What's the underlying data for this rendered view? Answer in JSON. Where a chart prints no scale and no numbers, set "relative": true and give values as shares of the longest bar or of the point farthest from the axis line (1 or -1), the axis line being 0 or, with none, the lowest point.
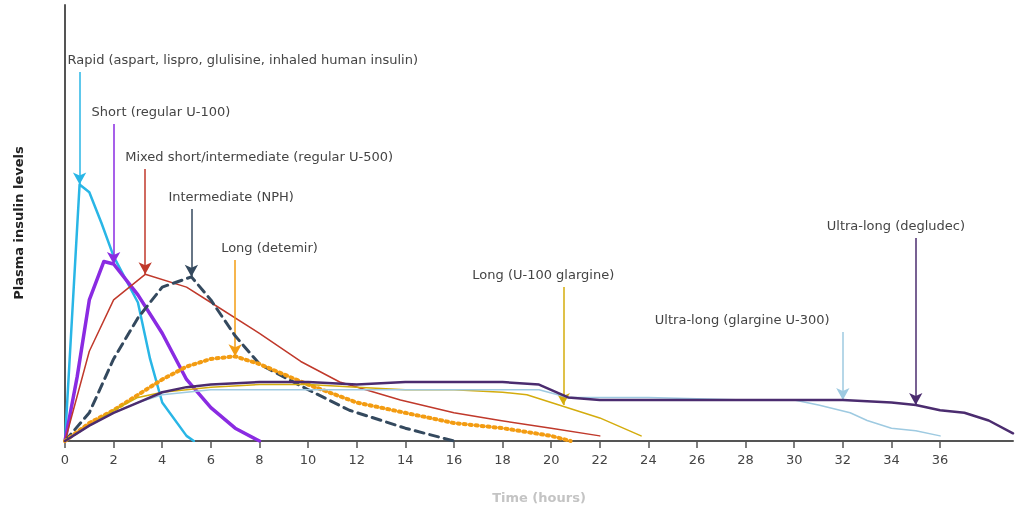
{
  "chart_data": {
    "type": "line",
    "relative": true,
    "xlabel": "Time (hours)",
    "ylabel": "Plasma insulin levels",
    "xlim": [
      0,
      39
    ],
    "xticks": [
      0,
      2,
      4,
      6,
      8,
      10,
      12,
      14,
      16,
      18,
      20,
      22,
      24,
      26,
      28,
      30,
      32,
      34,
      36
    ],
    "marker": "none",
    "grid": false,
    "series": [
      {
        "color": "#29b6e6",
        "line_style": "solid",
        "x": [
          0,
          0.3,
          0.6,
          1,
          1.5,
          2,
          3,
          3.5,
          4,
          5,
          5.3
        ],
        "values": [
          0,
          0.5,
          1.0,
          0.97,
          0.85,
          0.72,
          0.54,
          0.32,
          0.15,
          0.02,
          0
        ]
      },
      {
        "color": "#8a2be2",
        "line_style": "solid",
        "x": [
          0,
          0.5,
          1,
          1.6,
          2,
          3,
          4,
          5,
          6,
          7,
          8
        ],
        "values": [
          0,
          0.25,
          0.55,
          0.7,
          0.69,
          0.57,
          0.42,
          0.24,
          0.13,
          0.05,
          0
        ]
      },
      {
        "color": "#c0392b",
        "line_style": "solid",
        "x": [
          0,
          1,
          2,
          3.3,
          5,
          6,
          8,
          9.7,
          11.3,
          13.8,
          16,
          17.9,
          20,
          22
        ],
        "values": [
          0,
          0.35,
          0.55,
          0.65,
          0.6,
          0.54,
          0.42,
          0.31,
          0.23,
          0.16,
          0.11,
          0.08,
          0.05,
          0.02
        ]
      },
      {
        "color": "#34495e",
        "line_style": "dashed",
        "x": [
          0,
          1,
          2,
          3,
          4,
          5.2,
          6,
          7,
          8,
          9,
          10,
          11.7,
          14,
          16
        ],
        "values": [
          0,
          0.11,
          0.32,
          0.48,
          0.6,
          0.64,
          0.55,
          0.41,
          0.3,
          0.25,
          0.2,
          0.12,
          0.05,
          0
        ]
      },
      {
        "color": "#f39c12",
        "line_style": "dotted",
        "x": [
          0,
          1,
          2,
          3,
          4,
          5,
          6,
          7,
          8,
          9,
          10,
          12,
          14,
          16,
          18,
          20,
          20.8
        ],
        "values": [
          0,
          0.07,
          0.12,
          0.18,
          0.24,
          0.29,
          0.32,
          0.33,
          0.3,
          0.26,
          0.22,
          0.15,
          0.11,
          0.07,
          0.05,
          0.02,
          0
        ]
      },
      {
        "color": "#d4ac0d",
        "line_style": "solid",
        "x": [
          0,
          1,
          2,
          3,
          4,
          6,
          8,
          10,
          12,
          14,
          16,
          18,
          19,
          20,
          21,
          22,
          23.7
        ],
        "values": [
          0,
          0.06,
          0.12,
          0.17,
          0.19,
          0.21,
          0.22,
          0.22,
          0.21,
          0.2,
          0.2,
          0.19,
          0.18,
          0.15,
          0.12,
          0.09,
          0.02
        ]
      },
      {
        "color": "#9ecae1",
        "line_style": "solid",
        "x": [
          0,
          1,
          2,
          3,
          4,
          6,
          8,
          10,
          12,
          14,
          16,
          18,
          19.5,
          20.7,
          24,
          28,
          30,
          31,
          32.3,
          33,
          34,
          35,
          36
        ],
        "values": [
          0,
          0.06,
          0.11,
          0.15,
          0.18,
          0.2,
          0.2,
          0.2,
          0.2,
          0.2,
          0.2,
          0.2,
          0.2,
          0.17,
          0.17,
          0.16,
          0.16,
          0.14,
          0.11,
          0.08,
          0.05,
          0.04,
          0.02
        ]
      },
      {
        "color": "#4b2c6f",
        "line_style": "solid",
        "x": [
          0,
          1,
          2,
          3,
          4,
          5,
          6,
          8,
          10,
          12,
          14,
          16,
          18,
          19.5,
          20.7,
          22,
          26,
          30,
          32,
          34,
          35,
          36,
          37,
          38,
          39
        ],
        "values": [
          0,
          0.06,
          0.11,
          0.15,
          0.19,
          0.21,
          0.22,
          0.23,
          0.23,
          0.22,
          0.23,
          0.23,
          0.23,
          0.22,
          0.17,
          0.16,
          0.16,
          0.16,
          0.16,
          0.15,
          0.14,
          0.12,
          0.11,
          0.08,
          0.03
        ]
      }
    ],
    "annotations": [
      {
        "text": "Rapid (aspart, lispro, glulisine, inhaled human insulin)",
        "x": 0.6,
        "y": 1.0
      },
      {
        "text": "Short (regular U-100)",
        "x": 2,
        "y": 0.69
      },
      {
        "text": "Mixed short/intermediate (regular U-500)",
        "x": 3.3,
        "y": 0.65
      },
      {
        "text": "Intermediate (NPH)",
        "x": 5.2,
        "y": 0.64
      },
      {
        "text": "Long (detemir)",
        "x": 7,
        "y": 0.33
      },
      {
        "text": "Long (U-100 glargine)",
        "x": 20.5,
        "y": 0.14
      },
      {
        "text": "Ultra-long (glargine U-300)",
        "x": 32,
        "y": 0.16
      },
      {
        "text": "Ultra-long (degludec)",
        "x": 35,
        "y": 0.14
      }
    ]
  }
}
